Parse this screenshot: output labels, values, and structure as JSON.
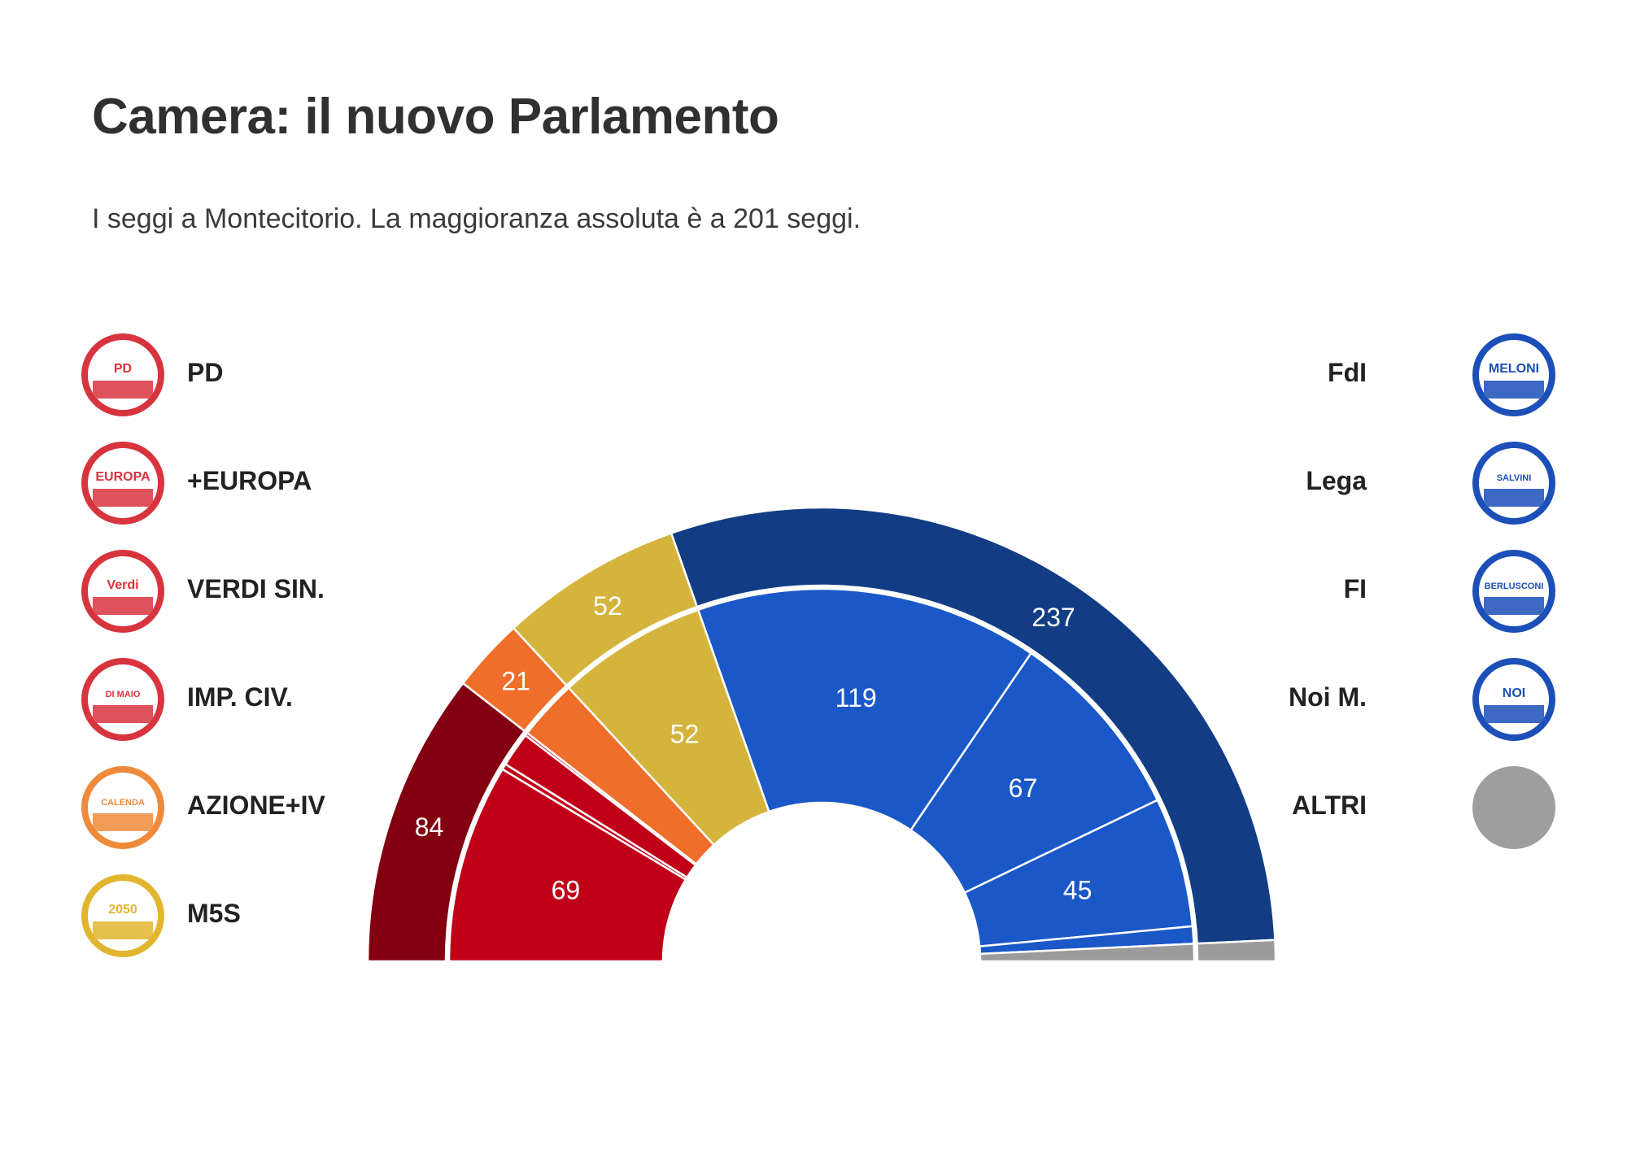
{
  "title": "Camera: il nuovo Parlamento",
  "subtitle": "I seggi a Montecitorio. La maggioranza assoluta è a 201 seggi.",
  "legend_left": [
    {
      "label": "PD",
      "color": "#d8343e",
      "icon": "pd-logo-icon",
      "logo_text": "PD"
    },
    {
      "label": "+EUROPA",
      "color": "#d8343e",
      "icon": "europa-logo-icon",
      "logo_text": "EUROPA"
    },
    {
      "label": "VERDI SIN.",
      "color": "#d8343e",
      "icon": "verdi-sinistra-logo-icon",
      "logo_text": "Verdi"
    },
    {
      "label": "IMP. CIV.",
      "color": "#d8343e",
      "icon": "impegno-civico-logo-icon",
      "logo_text": "DI MAIO"
    },
    {
      "label": "AZIONE+IV",
      "color": "#ee8a3a",
      "icon": "azione-iv-logo-icon",
      "logo_text": "CALENDA"
    },
    {
      "label": "M5S",
      "color": "#e1b52d",
      "icon": "m5s-logo-icon",
      "logo_text": "2050"
    }
  ],
  "legend_right": [
    {
      "label": "FdI",
      "color": "#1c4fb8",
      "icon": "fdi-logo-icon",
      "logo_text": "MELONI"
    },
    {
      "label": "Lega",
      "color": "#1c4fb8",
      "icon": "lega-logo-icon",
      "logo_text": "SALVINI"
    },
    {
      "label": "FI",
      "color": "#1c4fb8",
      "icon": "fi-logo-icon",
      "logo_text": "BERLUSCONI"
    },
    {
      "label": "Noi M.",
      "color": "#1c4fb8",
      "icon": "noi-moderati-logo-icon",
      "logo_text": "NOI"
    },
    {
      "label": "ALTRI",
      "color": "#9e9e9e",
      "icon": "altri-circle-icon",
      "logo_text": ""
    }
  ],
  "chart_data": {
    "type": "parliament-semicircle",
    "total_seats": 400,
    "majority": 201,
    "coalitions": [
      {
        "name": "",
        "seats": 84,
        "label": "84",
        "color": "#820010"
      },
      {
        "name": "",
        "seats": 21,
        "label": "21",
        "color": "#ee6e2a"
      },
      {
        "name": "",
        "seats": 52,
        "label": "52",
        "color": "#d5b43d"
      },
      {
        "name": "",
        "seats": 237,
        "label": "237",
        "color": "#123d85"
      },
      {
        "name": "",
        "seats": 6,
        "label": "",
        "color": "#9b9b9b"
      }
    ],
    "parties": [
      {
        "name": "PD",
        "seats": 69,
        "label": "69",
        "color": "#c00018"
      },
      {
        "name": "+EUROPA",
        "seats": 2,
        "label": "",
        "color": "#c00018"
      },
      {
        "name": "VERDI SIN.",
        "seats": 12,
        "label": "",
        "color": "#c00018"
      },
      {
        "name": "IMP. CIV.",
        "seats": 1,
        "label": "",
        "color": "#c00018"
      },
      {
        "name": "AZIONE+IV",
        "seats": 21,
        "label": "",
        "color": "#ee6e2a"
      },
      {
        "name": "M5S",
        "seats": 52,
        "label": "52",
        "color": "#d5b43d"
      },
      {
        "name": "FdI",
        "seats": 119,
        "label": "119",
        "color": "#1a58c8"
      },
      {
        "name": "Lega",
        "seats": 67,
        "label": "67",
        "color": "#1a58c8"
      },
      {
        "name": "FI",
        "seats": 45,
        "label": "45",
        "color": "#1a58c8"
      },
      {
        "name": "Noi M.",
        "seats": 6,
        "label": "",
        "color": "#1a58c8"
      },
      {
        "name": "ALTRI",
        "seats": 6,
        "label": "",
        "color": "#9b9b9b"
      }
    ]
  }
}
